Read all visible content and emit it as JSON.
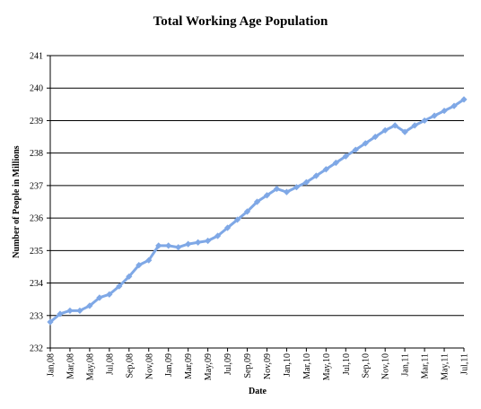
{
  "chart_data": {
    "type": "line",
    "title": "Total Working Age Population",
    "xlabel": "Date",
    "ylabel": "Number of People in Millions",
    "ylim": [
      232,
      241
    ],
    "yticks": [
      232,
      233,
      234,
      235,
      236,
      237,
      238,
      239,
      240,
      241
    ],
    "grid": true,
    "legend": "none",
    "x": [
      "Jan,08",
      "Feb,08",
      "Mar,08",
      "Apr,08",
      "May,08",
      "Jun,08",
      "Jul,08",
      "Aug,08",
      "Sep,08",
      "Oct,08",
      "Nov,08",
      "Dec,08",
      "Jan,09",
      "Feb,09",
      "Mar,09",
      "Apr,09",
      "May,09",
      "Jun,09",
      "Jul,09",
      "Aug,09",
      "Sep,09",
      "Oct,09",
      "Nov,09",
      "Dec,09",
      "Jan,10",
      "Feb,10",
      "Mar,10",
      "Apr,10",
      "May,10",
      "Jun,10",
      "Jul,10",
      "Aug,10",
      "Sep,10",
      "Oct,10",
      "Nov,10",
      "Dec,10",
      "Jan,11",
      "Feb,11",
      "Mar,11",
      "Apr,11",
      "May,11",
      "Jun,11",
      "Jul,11"
    ],
    "xtick_labels": [
      "Jan,08",
      "Mar,08",
      "May,08",
      "Jul,08",
      "Sep,08",
      "Nov,08",
      "Jan,09",
      "Mar,09",
      "May,09",
      "Jul,09",
      "Sep,09",
      "Nov,09",
      "Jan,10",
      "Mar,10",
      "May,10",
      "Jul,10",
      "Sep,10",
      "Nov,10",
      "Jan,11",
      "Mar,11",
      "May,11",
      "Jul,11"
    ],
    "series": [
      {
        "values": [
          232.8,
          233.05,
          233.15,
          233.15,
          233.3,
          233.55,
          233.65,
          233.9,
          234.2,
          234.55,
          234.7,
          235.15,
          235.15,
          235.1,
          235.2,
          235.25,
          235.3,
          235.45,
          235.7,
          235.95,
          236.2,
          236.5,
          236.7,
          236.9,
          236.8,
          236.95,
          237.1,
          237.3,
          237.5,
          237.7,
          237.9,
          238.1,
          238.3,
          238.5,
          238.7,
          238.85,
          238.65,
          238.85,
          239.0,
          239.15,
          239.3,
          239.45,
          239.65
        ],
        "color": "#7fa8e6"
      }
    ]
  }
}
